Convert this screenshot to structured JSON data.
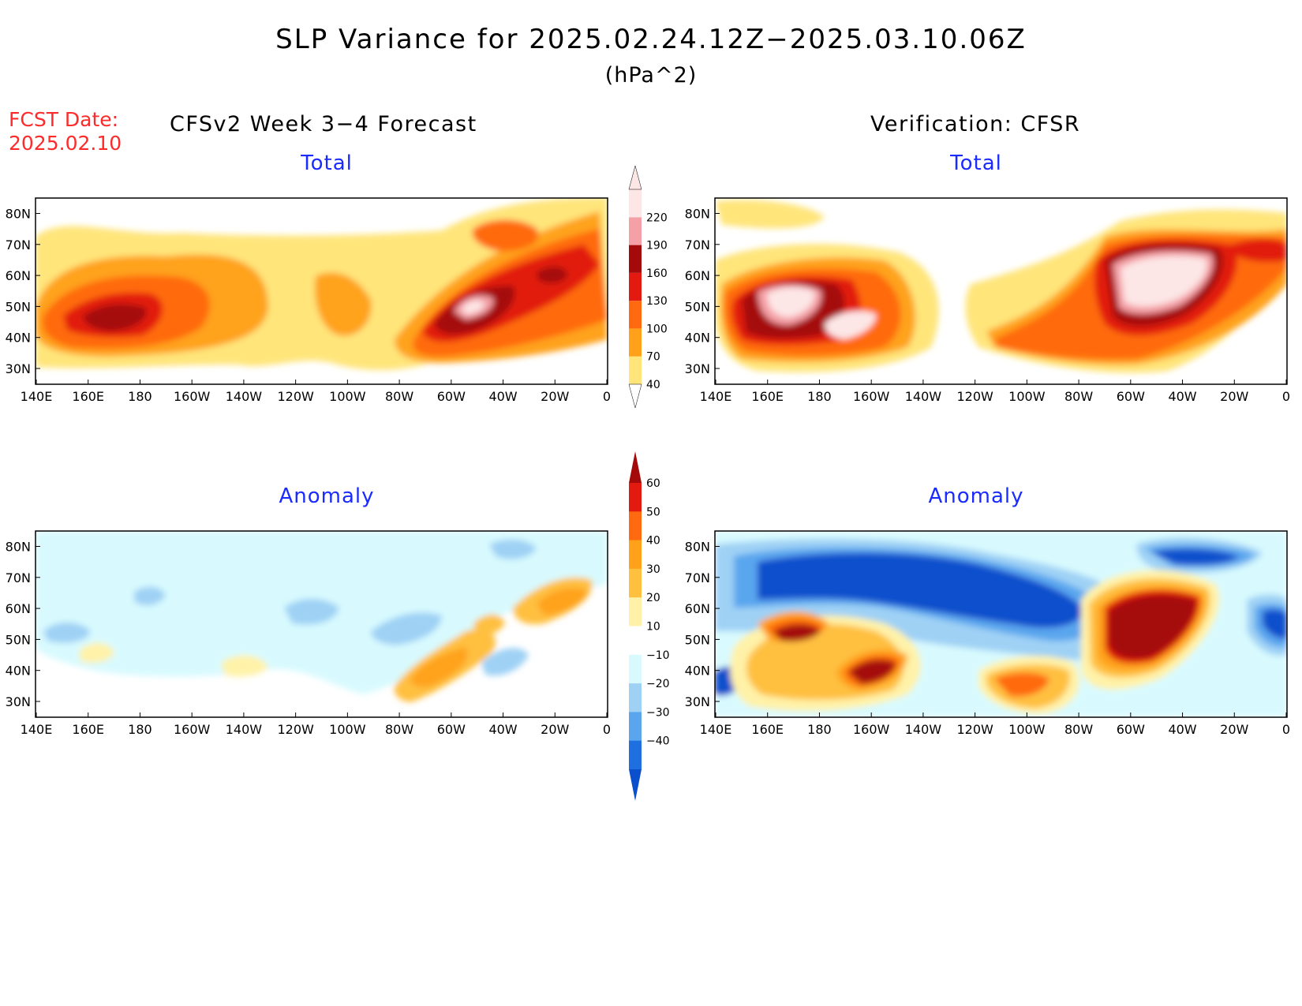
{
  "header": {
    "title": "SLP Variance for 2025.02.24.12Z−2025.03.10.06Z",
    "units": "(hPa^2)",
    "fcst_line1": "FCST Date:",
    "fcst_line2": "2025.02.10",
    "model_title": "CFSv2 Week 3−4 Forecast",
    "verif_title": "Verification: CFSR"
  },
  "panels": {
    "fcst_total": {
      "title": "Total"
    },
    "verif_total": {
      "title": "Total"
    },
    "fcst_anom": {
      "title": "Anomaly"
    },
    "verif_anom": {
      "title": "Anomaly"
    }
  },
  "axes": {
    "lon_labels": [
      "140E",
      "160E",
      "180",
      "160W",
      "140W",
      "120W",
      "100W",
      "80W",
      "60W",
      "40W",
      "20W",
      "0"
    ],
    "lat_labels": [
      "30N",
      "40N",
      "50N",
      "60N",
      "70N",
      "80N"
    ]
  },
  "colorbars": {
    "total": {
      "levels": [
        "40",
        "70",
        "100",
        "130",
        "160",
        "190",
        "220"
      ],
      "colors": [
        "#ffe57a",
        "#ffa21a",
        "#ff6a10",
        "#e21a10",
        "#a50a0a",
        "#f4a0a6",
        "#fde6e6"
      ]
    },
    "anomaly": {
      "levels": [
        "60",
        "50",
        "40",
        "30",
        "20",
        "10",
        "−10",
        "−20",
        "−30",
        "−40"
      ],
      "colors": [
        "#a50a0a",
        "#e21a10",
        "#ff6a10",
        "#ffa21a",
        "#ffc040",
        "#fff2a8",
        "#ffffff",
        "#d8fafe",
        "#9fd1f5",
        "#5aa6ee",
        "#1e6fe0",
        "#0b4fcc"
      ]
    }
  }
}
